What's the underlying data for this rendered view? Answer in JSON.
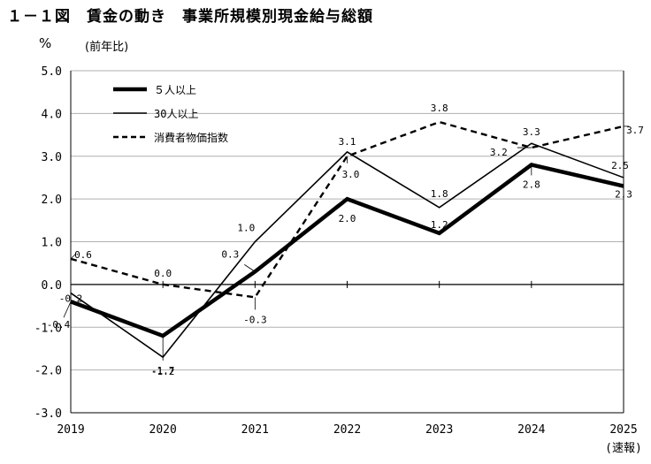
{
  "figure": {
    "title": "１－１図　賃金の動き　事業所規模別現金給与総額",
    "unit": "%",
    "unit_note": "(前年比)"
  },
  "chart_data": {
    "type": "line",
    "title": "１－１図　賃金の動き　事業所規模別現金給与総額",
    "ylabel": "%",
    "ylabel_note": "(前年比)",
    "xlabel": "",
    "ylim": [
      -3.0,
      5.0
    ],
    "y_ticks": [
      "5.0",
      "4.0",
      "3.0",
      "2.0",
      "1.0",
      "0.0",
      "-1.0",
      "-2.0",
      "-3.0"
    ],
    "x": [
      2019,
      2020,
      2021,
      2022,
      2023,
      2024,
      2025
    ],
    "x_tick_labels": [
      "2019",
      "2020",
      "2021",
      "2022",
      "2023",
      "2024",
      "2025"
    ],
    "x_tick_sublabels": [
      "",
      "",
      "",
      "",
      "",
      "",
      "(速報)"
    ],
    "grid": true,
    "legend_position": "top-left",
    "series": [
      {
        "name": "５人以上",
        "style": "thick",
        "color": "#000000",
        "values": [
          -0.4,
          -1.2,
          0.3,
          2.0,
          1.2,
          2.8,
          2.3
        ],
        "labels": [
          "-0.4",
          "-1.2",
          "0.3",
          "2.0",
          "1.2",
          "2.8",
          "2.3"
        ]
      },
      {
        "name": "30人以上",
        "style": "thin",
        "color": "#000000",
        "values": [
          -0.2,
          -1.7,
          1.0,
          3.1,
          1.8,
          3.3,
          2.5
        ],
        "labels": [
          "-0.2",
          "-1.7",
          "1.0",
          "3.1",
          "1.8",
          "3.3",
          "2.5"
        ]
      },
      {
        "name": "消費者物価指数",
        "style": "dashed",
        "color": "#000000",
        "values": [
          0.6,
          0.0,
          -0.3,
          3.0,
          3.8,
          3.2,
          3.7
        ],
        "labels": [
          "0.6",
          "0.0",
          "-0.3",
          "3.0",
          "3.8",
          "3.2",
          "3.7"
        ]
      }
    ]
  }
}
